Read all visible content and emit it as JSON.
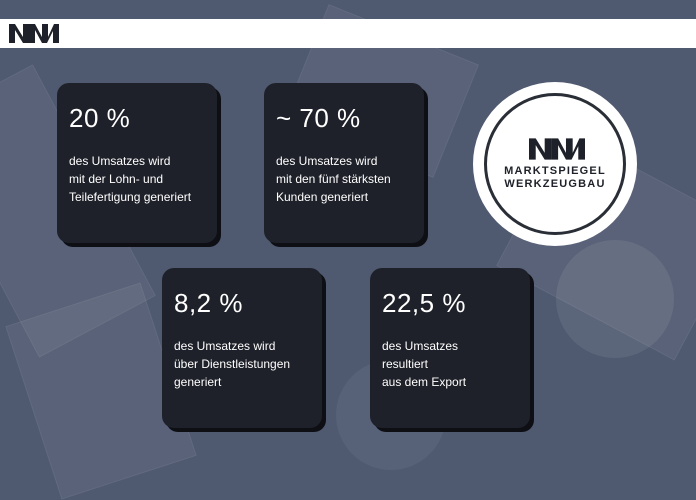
{
  "header": {
    "logo_icon": "mw-logo-icon"
  },
  "cards": [
    {
      "value": "20 %",
      "description": "des Umsatzes wird\nmit der Lohn- und\nTeilefertigung generiert"
    },
    {
      "value": "~ 70 %",
      "description": "des Umsatzes wird\nmit den fünf stärksten\nKunden generiert"
    },
    {
      "value": "8,2 %",
      "description": "des Umsatzes wird\nüber Dienstleistungen\ngeneriert"
    },
    {
      "value": "22,5 %",
      "description": "des Umsatzes\nresultiert\naus dem Export"
    }
  ],
  "badge": {
    "line1": "MARKTSPIEGEL",
    "line2": "WERKZEUGBAU",
    "icon": "mw-logo-icon"
  },
  "colors": {
    "background": "#4f5970",
    "card": "#1e2129",
    "text": "#ffffff",
    "logo": "#1e2129"
  }
}
